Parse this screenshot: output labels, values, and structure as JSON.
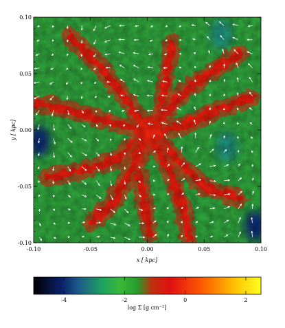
{
  "chart_data": {
    "type": "heatmap",
    "title": "",
    "xlabel": "x [ kpc]",
    "ylabel": "y [ kpc]",
    "xlim": [
      -0.1,
      0.1
    ],
    "ylim": [
      -0.1,
      0.1
    ],
    "x_ticks": [
      "-0.10",
      "-0.05",
      "0.00",
      "0.05",
      "0.10"
    ],
    "y_ticks": [
      "-0.10",
      "-0.05",
      "0.00",
      "0.05",
      "0.10"
    ],
    "grid": false,
    "overlay": "velocity vector arrows (white)",
    "colorbar": {
      "label": "log Σ [g cm⁻²]",
      "range": [
        -5,
        2.5
      ],
      "ticks": [
        "-4",
        "-2",
        "0",
        "2"
      ],
      "colors": [
        "#000000",
        "#0a1f66",
        "#1d5c8a",
        "#1fa060",
        "#3ab83a",
        "#2a9a2a",
        "#c03010",
        "#e01010",
        "#ff6000",
        "#ffc000",
        "#ffff20"
      ]
    },
    "filaments": [
      {
        "name": "central-column",
        "points": [
          [
            0.02,
            0.08
          ],
          [
            0.015,
            0.05
          ],
          [
            0.01,
            0.02
          ],
          [
            0.0,
            0.0
          ],
          [
            -0.01,
            -0.03
          ],
          [
            -0.005,
            -0.06
          ],
          [
            0.0,
            -0.09
          ]
        ]
      },
      {
        "name": "upper-left-arm",
        "points": [
          [
            -0.07,
            0.085
          ],
          [
            -0.045,
            0.06
          ],
          [
            -0.025,
            0.035
          ],
          [
            0.0,
            0.0
          ]
        ]
      },
      {
        "name": "left-arm",
        "points": [
          [
            -0.1,
            0.025
          ],
          [
            -0.07,
            0.02
          ],
          [
            -0.04,
            0.01
          ],
          [
            0.0,
            0.0
          ]
        ]
      },
      {
        "name": "lower-left-arm",
        "points": [
          [
            -0.09,
            -0.04
          ],
          [
            -0.06,
            -0.035
          ],
          [
            -0.03,
            -0.025
          ],
          [
            0.0,
            0.0
          ]
        ]
      },
      {
        "name": "lower-arm",
        "points": [
          [
            -0.05,
            -0.08
          ],
          [
            -0.03,
            -0.06
          ],
          [
            -0.015,
            -0.03
          ],
          [
            0.0,
            0.0
          ]
        ]
      },
      {
        "name": "right-arm",
        "points": [
          [
            0.0,
            0.0
          ],
          [
            0.03,
            0.005
          ],
          [
            0.06,
            0.02
          ],
          [
            0.09,
            0.03
          ]
        ]
      },
      {
        "name": "upper-right-arm",
        "points": [
          [
            0.0,
            0.0
          ],
          [
            0.025,
            0.03
          ],
          [
            0.05,
            0.05
          ],
          [
            0.08,
            0.07
          ]
        ]
      },
      {
        "name": "lower-right-arm",
        "points": [
          [
            0.0,
            0.0
          ],
          [
            0.03,
            -0.03
          ],
          [
            0.05,
            -0.05
          ],
          [
            0.08,
            -0.06
          ]
        ]
      },
      {
        "name": "bottom-right-arm",
        "points": [
          [
            0.0,
            0.0
          ],
          [
            0.02,
            -0.04
          ],
          [
            0.03,
            -0.07
          ],
          [
            0.035,
            -0.095
          ]
        ]
      }
    ],
    "voids": [
      {
        "name": "void-left",
        "center": [
          -0.095,
          -0.01
        ],
        "level": -4
      },
      {
        "name": "void-bottom-right",
        "center": [
          0.095,
          -0.085
        ],
        "level": -4
      },
      {
        "name": "void-right",
        "center": [
          0.07,
          -0.015
        ],
        "level": -3
      },
      {
        "name": "void-top-right",
        "center": [
          0.065,
          0.085
        ],
        "level": -3
      }
    ]
  }
}
